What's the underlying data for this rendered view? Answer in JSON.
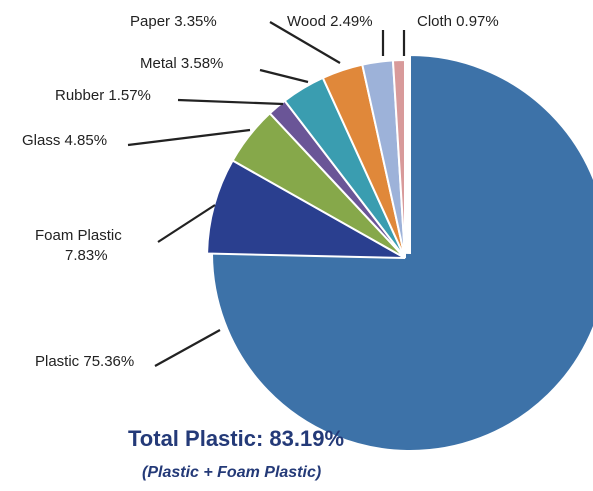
{
  "chart_data": {
    "type": "pie",
    "slices": [
      {
        "name": "Plastic",
        "value": 75.36,
        "label": "Plastic 75.36%",
        "color": "#3d72a8"
      },
      {
        "name": "Foam Plastic",
        "value": 7.83,
        "label": "Foam Plastic 7.83%",
        "label_lines": [
          "Foam Plastic",
          "7.83%"
        ],
        "color": "#2a3f8f"
      },
      {
        "name": "Glass",
        "value": 4.85,
        "label": "Glass 4.85%",
        "color": "#86a84a"
      },
      {
        "name": "Rubber",
        "value": 1.57,
        "label": "Rubber 1.57%",
        "color": "#6a5597"
      },
      {
        "name": "Metal",
        "value": 3.58,
        "label": "Metal 3.58%",
        "color": "#3a9db0"
      },
      {
        "name": "Paper",
        "value": 3.35,
        "label": "Paper 3.35%",
        "color": "#e0883a"
      },
      {
        "name": "Wood",
        "value": 2.49,
        "label": "Wood 2.49%",
        "color": "#9db2d9"
      },
      {
        "name": "Cloth",
        "value": 0.97,
        "label": "Cloth 0.97%",
        "color": "#d89a9a"
      }
    ],
    "start_angle_deg": 0,
    "direction": "counterclockwise-from-top",
    "exploded_slice": "Plastic"
  },
  "summary": {
    "title": "Total Plastic: 83.19%",
    "subtitle": "(Plastic + Foam Plastic)",
    "color": "#243a78"
  }
}
